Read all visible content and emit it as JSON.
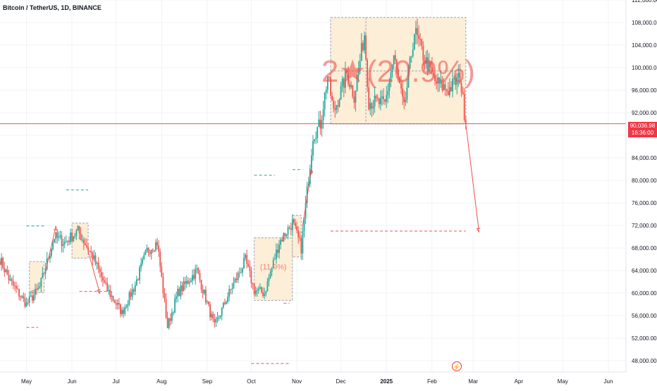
{
  "symbol": {
    "title": "Bitcoin / TetherUS, 1D, BINANCE"
  },
  "current_price": {
    "value": "90,036.98",
    "countdown": "16:36:00"
  },
  "annotations": {
    "main_range_label": "2★(20.9%)",
    "left_range_label": "(11.9%)"
  },
  "colors": {
    "up": "#26a69a",
    "down": "#ef5350",
    "box_fill": "#fdeed7",
    "box_border": "#9aa4b1",
    "price_line": "#f23645",
    "grid": "#f0f3fa",
    "axis_text": "#131722"
  },
  "event_icon": "lightning-icon",
  "chart_data": {
    "type": "candlestick",
    "title": "Bitcoin / TetherUS, 1D, BINANCE",
    "ylim": [
      46000,
      112000
    ],
    "y_ticks": [
      "112,000.00",
      "108,000.00",
      "104,000.00",
      "100,000.00",
      "96,000.00",
      "92,000.00",
      "88,000.00",
      "84,000.00",
      "80,000.00",
      "76,000.00",
      "72,000.00",
      "68,000.00",
      "64,000.00",
      "60,000.00",
      "56,000.00",
      "52,000.00",
      "48,000.00"
    ],
    "y_tick_values": [
      112000,
      108000,
      104000,
      100000,
      96000,
      92000,
      88000,
      84000,
      80000,
      76000,
      72000,
      68000,
      64000,
      60000,
      56000,
      52000,
      48000
    ],
    "x_ticks": [
      "May",
      "Jun",
      "Jul",
      "Aug",
      "Sep",
      "Oct",
      "Nov",
      "Dec",
      "2025",
      "Feb",
      "Mar",
      "Apr",
      "May",
      "Jun"
    ],
    "x_tick_dates": [
      "2024-05-01",
      "2024-06-01",
      "2024-07-01",
      "2024-08-01",
      "2024-09-01",
      "2024-10-01",
      "2024-11-01",
      "2024-12-01",
      "2025-01-01",
      "2025-02-01",
      "2025-03-01",
      "2025-04-01",
      "2025-05-01",
      "2025-06-01"
    ],
    "x_range": [
      "2024-04-13",
      "2025-06-13"
    ],
    "last_price": 90036.98,
    "key_points": [
      {
        "date": "2024-04-13",
        "close": 66000
      },
      {
        "date": "2024-04-20",
        "close": 62000
      },
      {
        "date": "2024-05-01",
        "close": 58000
      },
      {
        "date": "2024-05-10",
        "close": 61000
      },
      {
        "date": "2024-05-20",
        "close": 70000
      },
      {
        "date": "2024-05-27",
        "close": 69000
      },
      {
        "date": "2024-06-05",
        "close": 71000
      },
      {
        "date": "2024-06-15",
        "close": 66500
      },
      {
        "date": "2024-06-24",
        "close": 61000
      },
      {
        "date": "2024-07-05",
        "close": 56500
      },
      {
        "date": "2024-07-14",
        "close": 61500
      },
      {
        "date": "2024-07-22",
        "close": 67500
      },
      {
        "date": "2024-07-29",
        "close": 69000
      },
      {
        "date": "2024-08-05",
        "close": 54000
      },
      {
        "date": "2024-08-12",
        "close": 60000
      },
      {
        "date": "2024-08-25",
        "close": 64000
      },
      {
        "date": "2024-09-06",
        "close": 54000
      },
      {
        "date": "2024-09-15",
        "close": 59500
      },
      {
        "date": "2024-09-27",
        "close": 65800
      },
      {
        "date": "2024-10-03",
        "close": 60500
      },
      {
        "date": "2024-10-10",
        "close": 60000
      },
      {
        "date": "2024-10-20",
        "close": 69000
      },
      {
        "date": "2024-10-29",
        "close": 72500
      },
      {
        "date": "2024-11-04",
        "close": 68000
      },
      {
        "date": "2024-11-12",
        "close": 88000
      },
      {
        "date": "2024-11-17",
        "close": 90000
      },
      {
        "date": "2024-11-22",
        "close": 98500
      },
      {
        "date": "2024-11-26",
        "close": 92000
      },
      {
        "date": "2024-12-05",
        "close": 99000
      },
      {
        "date": "2024-12-10",
        "close": 95000
      },
      {
        "date": "2024-12-17",
        "close": 106000
      },
      {
        "date": "2024-12-20",
        "close": 94000
      },
      {
        "date": "2024-12-31",
        "close": 93500
      },
      {
        "date": "2025-01-06",
        "close": 102000
      },
      {
        "date": "2025-01-13",
        "close": 92500
      },
      {
        "date": "2025-01-20",
        "close": 106500
      },
      {
        "date": "2025-01-27",
        "close": 101500
      },
      {
        "date": "2025-02-03",
        "close": 97500
      },
      {
        "date": "2025-02-12",
        "close": 96000
      },
      {
        "date": "2025-02-20",
        "close": 98300
      },
      {
        "date": "2025-02-24",
        "close": 90036.98
      }
    ]
  }
}
